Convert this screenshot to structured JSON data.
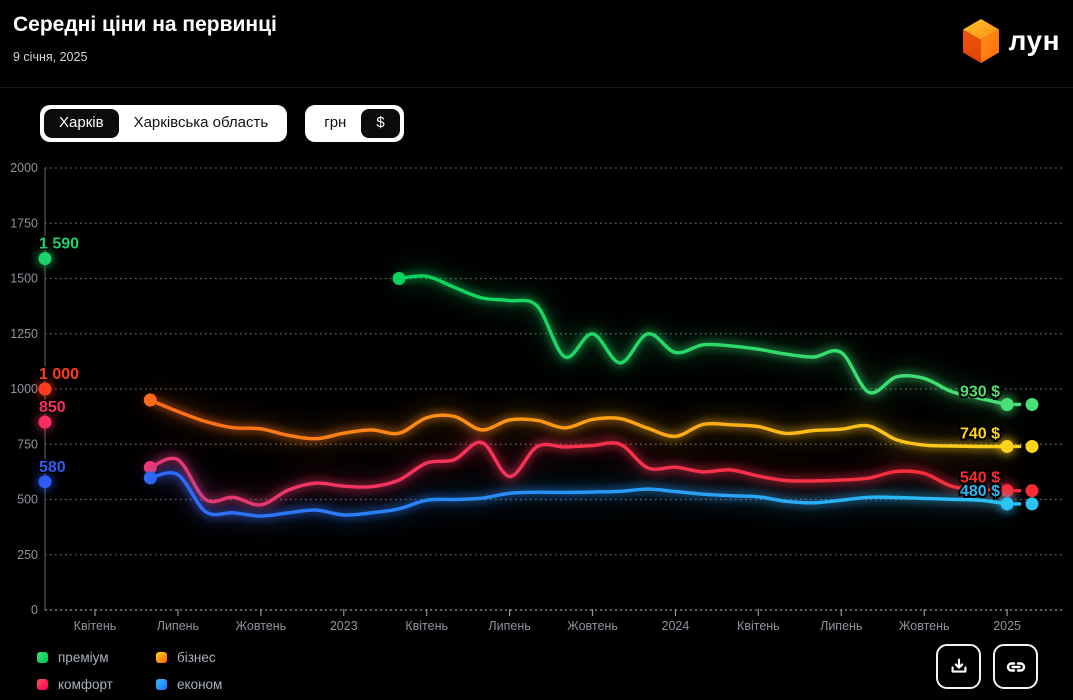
{
  "header": {
    "title": "Середні ціни на первинці",
    "date": "9 січня, 2025",
    "brand": "лун"
  },
  "controls": {
    "region_toggle": {
      "options": [
        "Харків",
        "Харківська область"
      ],
      "selected": "Харків"
    },
    "currency_toggle": {
      "options": [
        "грн",
        "$"
      ],
      "selected": "$"
    }
  },
  "chart_data": {
    "type": "line",
    "title": "Середні ціни на первинці",
    "unit": "$",
    "y_axis": {
      "min": 0,
      "max": 2000,
      "tick_step": 250,
      "grid": "dotted"
    },
    "x_axis": {
      "ticks": [
        {
          "label": "Квітень",
          "month": 0
        },
        {
          "label": "Липень",
          "month": 3
        },
        {
          "label": "Жовтень",
          "month": 6
        },
        {
          "label": "2023",
          "month": 9
        },
        {
          "label": "Квітень",
          "month": 12
        },
        {
          "label": "Липень",
          "month": 15
        },
        {
          "label": "Жовтень",
          "month": 18
        },
        {
          "label": "2024",
          "month": 21
        },
        {
          "label": "Квітень",
          "month": 24
        },
        {
          "label": "Липень",
          "month": 27
        },
        {
          "label": "Жовтень",
          "month": 30
        },
        {
          "label": "2025",
          "month": 33
        }
      ]
    },
    "forecast_month": 33.9,
    "series": [
      {
        "name": "преміум",
        "color_start": "#0bd45f",
        "color_end": "#49e077",
        "axis_dot": {
          "value": 1590,
          "label": "1 590",
          "color": "#1bd169"
        },
        "end": {
          "value": 930,
          "label": "930 $",
          "color": "#4fe06e"
        },
        "points": [
          [
            11,
            1500
          ],
          [
            12,
            1510
          ],
          [
            13,
            1460
          ],
          [
            14,
            1412
          ],
          [
            15,
            1400
          ],
          [
            16,
            1375
          ],
          [
            17,
            1145
          ],
          [
            18,
            1250
          ],
          [
            19,
            1118
          ],
          [
            20,
            1250
          ],
          [
            21,
            1165
          ],
          [
            22,
            1200
          ],
          [
            23,
            1195
          ],
          [
            24,
            1180
          ],
          [
            25,
            1158
          ],
          [
            26,
            1145
          ],
          [
            27,
            1165
          ],
          [
            28,
            985
          ],
          [
            29,
            1055
          ],
          [
            30,
            1048
          ],
          [
            31,
            988
          ],
          [
            32,
            958
          ],
          [
            33,
            930
          ]
        ]
      },
      {
        "name": "бізнес",
        "color_start": "#ff6a1a",
        "color_mid": "#ffa013",
        "color_end": "#ffd21c",
        "axis_dot": {
          "value": 1000,
          "label": "1 000",
          "color": "#ff3c1e"
        },
        "end": {
          "value": 740,
          "label": "740 $",
          "color": "#ffd60f"
        },
        "points": [
          [
            2,
            950
          ],
          [
            3,
            898
          ],
          [
            4,
            853
          ],
          [
            5,
            825
          ],
          [
            6,
            820
          ],
          [
            7,
            790
          ],
          [
            8,
            775
          ],
          [
            9,
            800
          ],
          [
            10,
            815
          ],
          [
            11,
            800
          ],
          [
            12,
            870
          ],
          [
            13,
            876
          ],
          [
            14,
            815
          ],
          [
            15,
            860
          ],
          [
            16,
            858
          ],
          [
            17,
            824
          ],
          [
            18,
            862
          ],
          [
            19,
            866
          ],
          [
            20,
            822
          ],
          [
            21,
            786
          ],
          [
            22,
            840
          ],
          [
            23,
            838
          ],
          [
            24,
            830
          ],
          [
            25,
            799
          ],
          [
            26,
            812
          ],
          [
            27,
            818
          ],
          [
            28,
            833
          ],
          [
            29,
            770
          ],
          [
            30,
            746
          ],
          [
            31,
            742
          ],
          [
            32,
            740
          ],
          [
            33,
            740
          ]
        ]
      },
      {
        "name": "комфорт",
        "color_start": "#f2366f",
        "color_mid": "#fb3150",
        "color_end": "#ff2936",
        "axis_dot": {
          "value": 850,
          "label": "850",
          "color": "#fa2e63"
        },
        "end": {
          "value": 540,
          "label": "540 $",
          "color": "#ff2b2b"
        },
        "points": [
          [
            2,
            645
          ],
          [
            3,
            680
          ],
          [
            4,
            500
          ],
          [
            5,
            510
          ],
          [
            6,
            476
          ],
          [
            7,
            543
          ],
          [
            8,
            574
          ],
          [
            9,
            560
          ],
          [
            10,
            558
          ],
          [
            11,
            588
          ],
          [
            12,
            665
          ],
          [
            13,
            680
          ],
          [
            14,
            758
          ],
          [
            15,
            604
          ],
          [
            16,
            740
          ],
          [
            17,
            738
          ],
          [
            18,
            744
          ],
          [
            19,
            750
          ],
          [
            20,
            643
          ],
          [
            21,
            646
          ],
          [
            22,
            625
          ],
          [
            23,
            634
          ],
          [
            24,
            606
          ],
          [
            25,
            586
          ],
          [
            26,
            584
          ],
          [
            27,
            588
          ],
          [
            28,
            597
          ],
          [
            29,
            627
          ],
          [
            30,
            618
          ],
          [
            31,
            560
          ],
          [
            32,
            545
          ],
          [
            33,
            540
          ]
        ]
      },
      {
        "name": "економ",
        "color_start": "#2e68fa",
        "color_mid": "#2795f7",
        "color_end": "#2cc3f6",
        "axis_dot": {
          "value": 580,
          "label": "580",
          "color": "#2e5cf6"
        },
        "end": {
          "value": 480,
          "label": "480 $",
          "color": "#2bb7f2"
        },
        "points": [
          [
            2,
            598
          ],
          [
            3,
            612
          ],
          [
            4,
            445
          ],
          [
            5,
            440
          ],
          [
            6,
            425
          ],
          [
            7,
            440
          ],
          [
            8,
            452
          ],
          [
            9,
            430
          ],
          [
            10,
            440
          ],
          [
            11,
            458
          ],
          [
            12,
            497
          ],
          [
            13,
            500
          ],
          [
            14,
            506
          ],
          [
            15,
            528
          ],
          [
            16,
            533
          ],
          [
            17,
            532
          ],
          [
            18,
            534
          ],
          [
            19,
            537
          ],
          [
            20,
            547
          ],
          [
            21,
            536
          ],
          [
            22,
            524
          ],
          [
            23,
            517
          ],
          [
            24,
            512
          ],
          [
            25,
            492
          ],
          [
            26,
            485
          ],
          [
            27,
            497
          ],
          [
            28,
            510
          ],
          [
            29,
            509
          ],
          [
            30,
            505
          ],
          [
            31,
            501
          ],
          [
            32,
            497
          ],
          [
            33,
            480
          ]
        ]
      }
    ]
  },
  "legend": {
    "items": [
      {
        "label": "преміум",
        "swatch": [
          "#3ae473",
          "#00bf55"
        ]
      },
      {
        "label": "бізнес",
        "swatch": [
          "#ffd21e",
          "#ff5f00"
        ]
      },
      {
        "label": "комфорт",
        "swatch": [
          "#ff4d5e",
          "#f50057"
        ]
      },
      {
        "label": "економ",
        "swatch": [
          "#35c0ff",
          "#1e6cff"
        ]
      }
    ]
  },
  "colors": {
    "grid": "#85888f",
    "axis_line": "#53565c",
    "tick_label": "#8e939c",
    "legend_text": "#a9b0bb",
    "accent_logo": "#ff7312"
  }
}
